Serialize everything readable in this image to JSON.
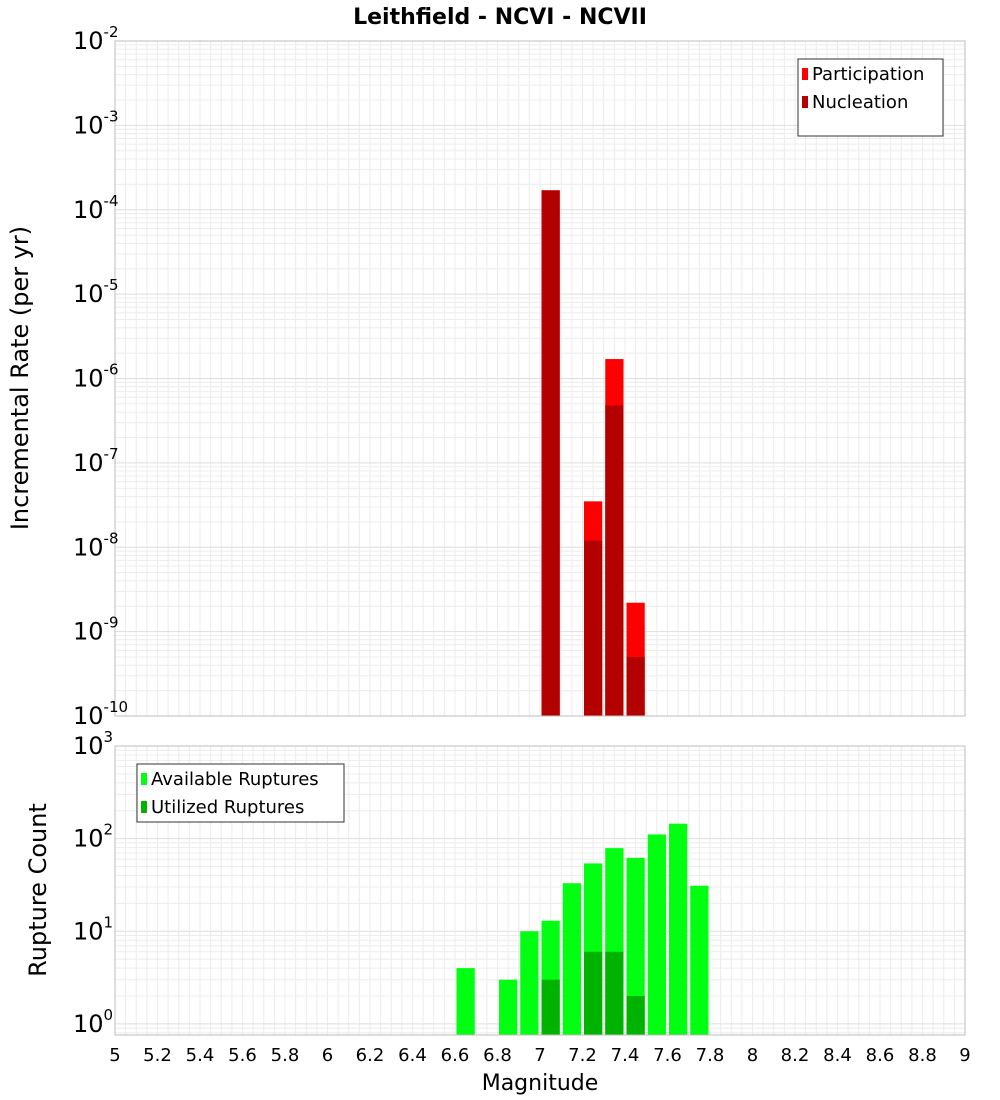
{
  "chart_data": {
    "type": "bar",
    "title": "Leithfield - NCVI - NCVII",
    "xlabel": "Magnitude",
    "xlim": [
      5,
      9
    ],
    "xticks": [
      "5",
      "5.2",
      "5.4",
      "5.6",
      "5.8",
      "6",
      "6.2",
      "6.4",
      "6.6",
      "6.8",
      "7",
      "7.2",
      "7.4",
      "7.6",
      "7.8",
      "8",
      "8.2",
      "8.4",
      "8.6",
      "8.8",
      "9"
    ],
    "bin_width": 0.1,
    "panels": [
      {
        "ylabel": "Incremental Rate (per yr)",
        "yscale": "log",
        "ylim_exp": [
          -10,
          -2
        ],
        "ytick_exponents": [
          "-10",
          "-9",
          "-8",
          "-7",
          "-6",
          "-5",
          "-4",
          "-3",
          "-2"
        ],
        "legend_position": "top-right",
        "series": [
          {
            "name": "Participation",
            "color": "#ff0000",
            "x": [
              7.05,
              7.25,
              7.35,
              7.45
            ],
            "values": [
              0.00017,
              3.5e-08,
              1.7e-06,
              2.2e-09
            ]
          },
          {
            "name": "Nucleation",
            "color": "#b30000",
            "x": [
              7.05,
              7.25,
              7.35,
              7.45
            ],
            "values": [
              0.00017,
              1.2e-08,
              4.8e-07,
              5e-10
            ]
          }
        ]
      },
      {
        "ylabel": "Rupture Count",
        "yscale": "log",
        "ylim_exp": [
          -0.12,
          3
        ],
        "ytick_exponents": [
          "0",
          "1",
          "2",
          "3"
        ],
        "legend_position": "top-left",
        "series": [
          {
            "name": "Available Ruptures",
            "color": "#00ff10",
            "x": [
              6.65,
              6.85,
              6.95,
              7.05,
              7.15,
              7.25,
              7.35,
              7.45,
              7.55,
              7.65,
              7.75
            ],
            "values": [
              4,
              3,
              10,
              13,
              33,
              54,
              79,
              62,
              111,
              145,
              31
            ]
          },
          {
            "name": "Utilized Ruptures",
            "color": "#00b300",
            "x": [
              7.05,
              7.25,
              7.35,
              7.45
            ],
            "values": [
              3,
              6,
              6,
              2
            ]
          }
        ]
      }
    ]
  }
}
